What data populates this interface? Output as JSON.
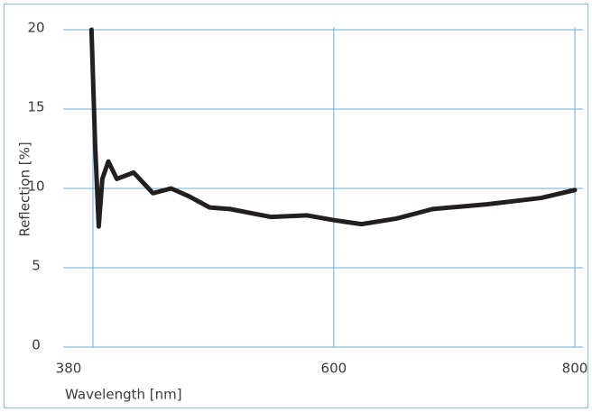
{
  "chart_data": {
    "type": "line",
    "x_label": "Wavelength [nm]",
    "y_label": "Reflection [%]",
    "x": [
      399,
      402,
      405,
      408,
      413,
      420,
      434,
      450,
      465,
      480,
      497,
      514,
      548,
      578,
      600,
      623,
      652,
      682,
      727,
      772,
      800
    ],
    "series": [
      {
        "name": "Reflection",
        "color": "#231f20",
        "values": [
          20,
          12.8,
          7.6,
          10.6,
          11.7,
          10.6,
          11.0,
          9.7,
          10.0,
          9.5,
          8.8,
          8.7,
          8.2,
          8.3,
          8.0,
          7.75,
          8.1,
          8.7,
          9.0,
          9.4,
          9.9
        ]
      }
    ],
    "xlim": [
      380,
      800
    ],
    "ylim": [
      0,
      20
    ],
    "xticks": [
      380,
      600,
      800
    ],
    "yticks": [
      0,
      5,
      10,
      15,
      20
    ],
    "grid": true
  }
}
